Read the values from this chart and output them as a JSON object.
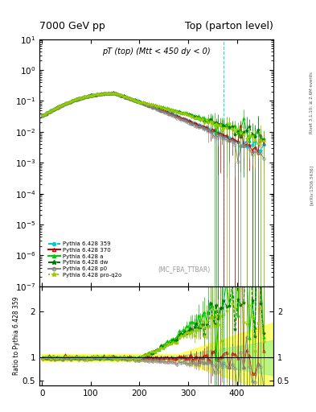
{
  "title_left": "7000 GeV pp",
  "title_right": "Top (parton level)",
  "main_title": "pT (top) (Mtt < 450 dy < 0)",
  "watermark": "(MC_FBA_TTBAR)",
  "ylabel_ratio": "Ratio to Pythia 6.428 359",
  "right_label_top": "Rivet 3.1.10; ≥ 2.6M events",
  "right_label_bot": "[arXiv:1306.3436]",
  "ylim_main": [
    1e-07,
    10
  ],
  "ylim_ratio": [
    0.4,
    2.55
  ],
  "xlim": [
    -5,
    475
  ],
  "xticks": [
    0,
    100,
    200,
    300,
    400
  ],
  "colors": {
    "ref": "#00CCCC",
    "p370": "#CC0000",
    "pa": "#00CC00",
    "pdw": "#007700",
    "pp0": "#888888",
    "pproq2o": "#99CC00"
  },
  "legend_entries": [
    "Pythia 6.428 359",
    "Pythia 6.428 370",
    "Pythia 6.428 a",
    "Pythia 6.428 dw",
    "Pythia 6.428 p0",
    "Pythia 6.428 pro-q2o"
  ],
  "ref_vline_x": 372,
  "background_color": "#ffffff"
}
